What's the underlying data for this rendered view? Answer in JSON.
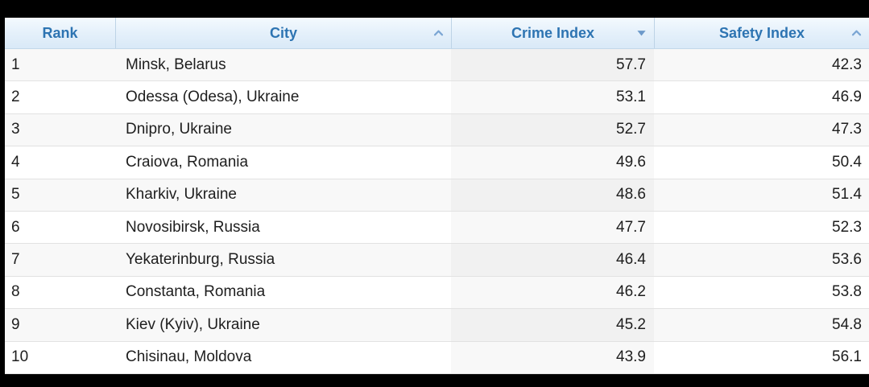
{
  "table": {
    "columns": [
      {
        "key": "rank",
        "label": "Rank",
        "sort_icon": null,
        "align": "left"
      },
      {
        "key": "city",
        "label": "City",
        "sort_icon": "chevron-up-icon",
        "align": "left"
      },
      {
        "key": "crime_index",
        "label": "Crime Index",
        "sort_icon": "triangle-down-icon",
        "align": "right"
      },
      {
        "key": "safety_index",
        "label": "Safety Index",
        "sort_icon": "chevron-up-icon",
        "align": "right"
      }
    ],
    "sorted_by": "Crime Index",
    "sort_direction": "descending",
    "rows": [
      {
        "rank": "1",
        "city": "Minsk, Belarus",
        "crime_index": "57.7",
        "safety_index": "42.3"
      },
      {
        "rank": "2",
        "city": "Odessa (Odesa), Ukraine",
        "crime_index": "53.1",
        "safety_index": "46.9"
      },
      {
        "rank": "3",
        "city": "Dnipro, Ukraine",
        "crime_index": "52.7",
        "safety_index": "47.3"
      },
      {
        "rank": "4",
        "city": "Craiova, Romania",
        "crime_index": "49.6",
        "safety_index": "50.4"
      },
      {
        "rank": "5",
        "city": "Kharkiv, Ukraine",
        "crime_index": "48.6",
        "safety_index": "51.4"
      },
      {
        "rank": "6",
        "city": "Novosibirsk, Russia",
        "crime_index": "47.7",
        "safety_index": "52.3"
      },
      {
        "rank": "7",
        "city": "Yekaterinburg, Russia",
        "crime_index": "46.4",
        "safety_index": "53.6"
      },
      {
        "rank": "8",
        "city": "Constanta, Romania",
        "crime_index": "46.2",
        "safety_index": "53.8"
      },
      {
        "rank": "9",
        "city": "Kiev (Kyiv), Ukraine",
        "crime_index": "45.2",
        "safety_index": "54.8"
      },
      {
        "rank": "10",
        "city": "Chisinau, Moldova",
        "crime_index": "43.9",
        "safety_index": "56.1"
      }
    ]
  },
  "colors": {
    "header_text": "#2d74b2",
    "header_bg_top": "#f4fafe",
    "header_bg_bottom": "#d9e9f7",
    "header_separator": "#bdd3e6",
    "sort_chevron": "#7ba6d4",
    "sort_triangle": "#6d9aca",
    "row_stripe": "#f8f8f8",
    "row_separator": "#e2e2e2",
    "body_text": "#1e1e1e",
    "frame_background": "#000000"
  }
}
